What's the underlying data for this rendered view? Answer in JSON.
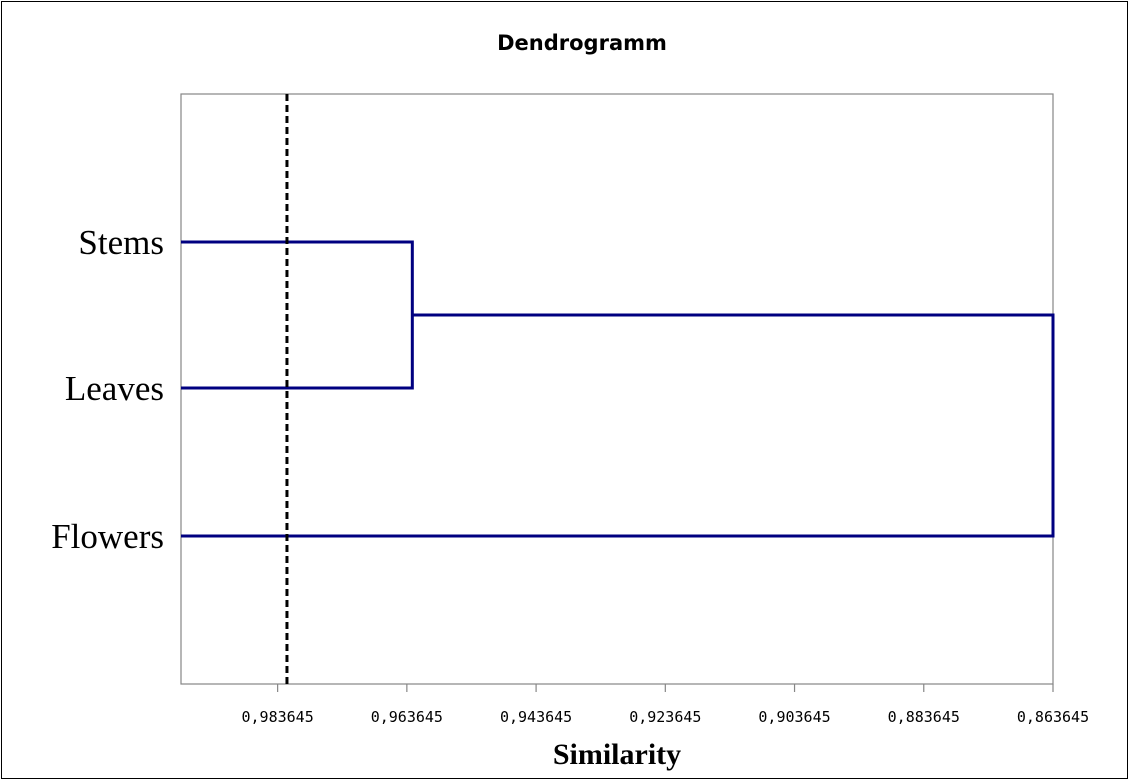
{
  "chart_data": {
    "type": "dendrogram",
    "title": "Dendrogramm",
    "xlabel": "Similarity",
    "ylabel": "",
    "orientation": "horizontal",
    "x_reversed": true,
    "xlim": [
      0.9986,
      0.863645
    ],
    "x_ticks": [
      0.983645,
      0.963645,
      0.943645,
      0.923645,
      0.903645,
      0.883645,
      0.863645
    ],
    "x_tick_labels": [
      "0,983645",
      "0,963645",
      "0,943645",
      "0,923645",
      "0,903645",
      "0,883645",
      "0,863645"
    ],
    "leaves": [
      "Stems",
      "Leaves",
      "Flowers"
    ],
    "merges": [
      {
        "left": "Stems",
        "right": "Leaves",
        "similarity": 0.9628
      },
      {
        "left": "Stems+Leaves",
        "right": "Flowers",
        "similarity": 0.863645
      }
    ],
    "threshold": {
      "similarity": 0.9822,
      "style": "dashed",
      "color": "#000000"
    },
    "grid": false,
    "line_color": "#000080",
    "axis_color": "#868686"
  }
}
